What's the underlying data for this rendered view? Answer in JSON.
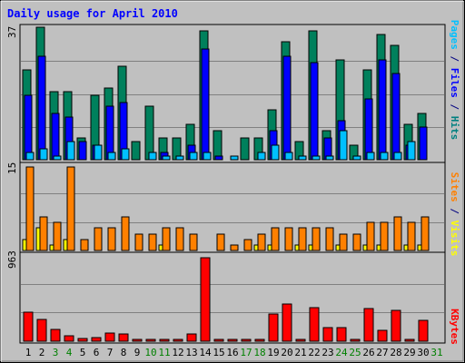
{
  "chart_data": [
    {
      "type": "bar",
      "title": "Daily usage for April 2010",
      "categories": [
        "1",
        "2",
        "3",
        "4",
        "5",
        "6",
        "7",
        "8",
        "9",
        "10",
        "11",
        "12",
        "13",
        "14",
        "15",
        "16",
        "17",
        "18",
        "19",
        "20",
        "21",
        "22",
        "23",
        "24",
        "25",
        "26",
        "27",
        "28",
        "29",
        "30",
        "31"
      ],
      "weekend_days": [
        "3",
        "4",
        "10",
        "11",
        "17",
        "18",
        "24",
        "25",
        "31"
      ],
      "ylabel_parts": [
        {
          "text": "Pages",
          "color": "#00c0ff"
        },
        {
          "text": " / ",
          "color": "#000080"
        },
        {
          "text": "Files",
          "color": "#0000ff"
        },
        {
          "text": " / ",
          "color": "#000080"
        },
        {
          "text": "Hits",
          "color": "#008080"
        }
      ],
      "ymax_label": "37",
      "ylim": [
        0,
        37
      ],
      "series": [
        {
          "name": "Hits",
          "color": "#00805c",
          "values": [
            25,
            37,
            19,
            19,
            6,
            18,
            20,
            26,
            5,
            15,
            6,
            6,
            10,
            36,
            8,
            0,
            6,
            6,
            14,
            33,
            5,
            36,
            8,
            28,
            4,
            25,
            35,
            32,
            10,
            13,
            0
          ]
        },
        {
          "name": "Files",
          "color": "#0000ff",
          "values": [
            18,
            29,
            13,
            12,
            5,
            4,
            15,
            16,
            0,
            0,
            2,
            0,
            4,
            31,
            1,
            0,
            0,
            0,
            8,
            29,
            0,
            27,
            6,
            11,
            0,
            17,
            28,
            24,
            4,
            9,
            0
          ]
        },
        {
          "name": "Pages",
          "color": "#00c0ff",
          "values": [
            2,
            3,
            1,
            5,
            0,
            4,
            2,
            3,
            0,
            2,
            1,
            1,
            2,
            2,
            0,
            1,
            0,
            2,
            4,
            2,
            1,
            1,
            1,
            8,
            1,
            2,
            2,
            2,
            5,
            0,
            0
          ]
        }
      ]
    },
    {
      "type": "bar",
      "categories": [
        "1",
        "2",
        "3",
        "4",
        "5",
        "6",
        "7",
        "8",
        "9",
        "10",
        "11",
        "12",
        "13",
        "14",
        "15",
        "16",
        "17",
        "18",
        "19",
        "20",
        "21",
        "22",
        "23",
        "24",
        "25",
        "26",
        "27",
        "28",
        "29",
        "30",
        "31"
      ],
      "ylabel_parts": [
        {
          "text": "Sites",
          "color": "#ff8000"
        },
        {
          "text": " / ",
          "color": "#000080"
        },
        {
          "text": "Visits",
          "color": "#ffff00"
        }
      ],
      "ymax_label": "15",
      "ylim": [
        0,
        15
      ],
      "series": [
        {
          "name": "Visits",
          "color": "#ffff00",
          "values": [
            2,
            4,
            1,
            2,
            0,
            0,
            0,
            0,
            0,
            0,
            1,
            0,
            0,
            0,
            0,
            0,
            0,
            1,
            1,
            0,
            1,
            1,
            0,
            1,
            0,
            1,
            1,
            0,
            1,
            1,
            0
          ]
        },
        {
          "name": "Sites",
          "color": "#ff8000",
          "values": [
            15,
            6,
            5,
            15,
            2,
            4,
            4,
            6,
            3,
            3,
            4,
            4,
            3,
            0,
            3,
            1,
            2,
            3,
            4,
            4,
            4,
            4,
            4,
            3,
            3,
            5,
            5,
            6,
            5,
            6,
            0
          ]
        }
      ]
    },
    {
      "type": "bar",
      "categories": [
        "1",
        "2",
        "3",
        "4",
        "5",
        "6",
        "7",
        "8",
        "9",
        "10",
        "11",
        "12",
        "13",
        "14",
        "15",
        "16",
        "17",
        "18",
        "19",
        "20",
        "21",
        "22",
        "23",
        "24",
        "25",
        "26",
        "27",
        "28",
        "29",
        "30",
        "31"
      ],
      "ylabel_parts": [
        {
          "text": "KBytes",
          "color": "#ff0000"
        }
      ],
      "ymax_label": "963",
      "ylim": [
        0,
        963
      ],
      "series": [
        {
          "name": "KBytes",
          "color": "#ff0000",
          "values": [
            337,
            250,
            139,
            65,
            35,
            47,
            90,
            80,
            5,
            8,
            15,
            12,
            88,
            963,
            12,
            8,
            8,
            8,
            318,
            428,
            15,
            392,
            160,
            160,
            20,
            380,
            129,
            360,
            2,
            243,
            0
          ]
        }
      ]
    }
  ]
}
